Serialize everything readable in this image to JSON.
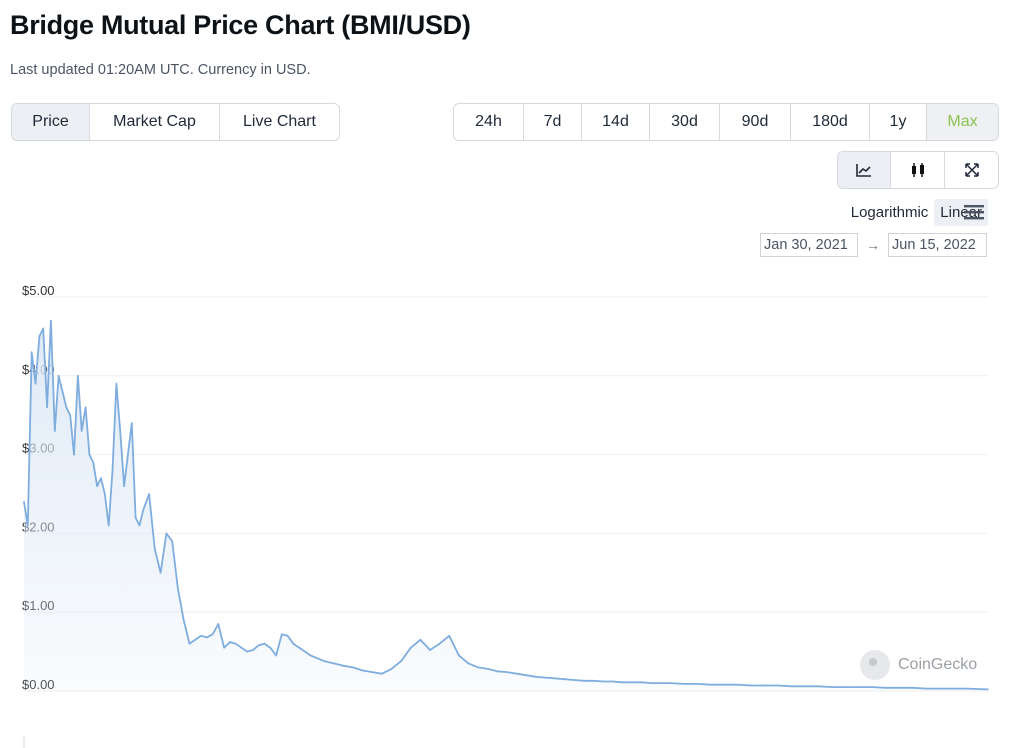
{
  "header": {
    "title": "Bridge Mutual Price Chart (BMI/USD)",
    "subtitle": "Last updated 01:20AM UTC. Currency in USD."
  },
  "view_tabs": [
    {
      "label": "Price",
      "active": true
    },
    {
      "label": "Market Cap",
      "active": false
    },
    {
      "label": "Live Chart",
      "active": false
    }
  ],
  "ranges": [
    {
      "label": "24h",
      "active": false
    },
    {
      "label": "7d",
      "active": false
    },
    {
      "label": "14d",
      "active": false
    },
    {
      "label": "30d",
      "active": false
    },
    {
      "label": "90d",
      "active": false
    },
    {
      "label": "180d",
      "active": false
    },
    {
      "label": "1y",
      "active": false
    },
    {
      "label": "Max",
      "active": true
    }
  ],
  "tools": [
    {
      "icon": "line-chart-icon",
      "active": true
    },
    {
      "icon": "candlestick-icon",
      "active": false
    },
    {
      "icon": "fullscreen-icon",
      "active": false
    }
  ],
  "scale": {
    "logarithmic": "Logarithmic",
    "linear": "Linear",
    "selected": "Linear"
  },
  "date_range": {
    "from": "Jan 30, 2021",
    "arrow": "→",
    "to": "Jun 15, 2022"
  },
  "watermark": {
    "text": "CoinGecko"
  },
  "colors": {
    "line": "#7fadde",
    "fill": "#dce8f6",
    "active_range": "#8cc351",
    "grid": "#eef0f2"
  },
  "chart_data": {
    "type": "area",
    "title": "Bridge Mutual Price Chart (BMI/USD)",
    "y_ticks": [
      "$0.00",
      "$1.00",
      "$2.00",
      "$3.00",
      "$4.00",
      "$5.00"
    ],
    "ylim": [
      0,
      5
    ],
    "xlim": [
      "2021-01-30",
      "2022-06-15"
    ],
    "grid": true,
    "x": [
      "2021-01-30",
      "2021-02-01",
      "2021-02-03",
      "2021-02-05",
      "2021-02-07",
      "2021-02-09",
      "2021-02-11",
      "2021-02-13",
      "2021-02-15",
      "2021-02-17",
      "2021-02-19",
      "2021-02-21",
      "2021-02-23",
      "2021-02-25",
      "2021-02-27",
      "2021-03-01",
      "2021-03-03",
      "2021-03-05",
      "2021-03-07",
      "2021-03-09",
      "2021-03-11",
      "2021-03-13",
      "2021-03-15",
      "2021-03-17",
      "2021-03-19",
      "2021-03-21",
      "2021-03-23",
      "2021-03-25",
      "2021-03-27",
      "2021-03-29",
      "2021-03-31",
      "2021-04-02",
      "2021-04-05",
      "2021-04-08",
      "2021-04-11",
      "2021-04-14",
      "2021-04-17",
      "2021-04-20",
      "2021-04-23",
      "2021-04-26",
      "2021-04-29",
      "2021-05-02",
      "2021-05-05",
      "2021-05-08",
      "2021-05-11",
      "2021-05-14",
      "2021-05-17",
      "2021-05-20",
      "2021-05-23",
      "2021-05-26",
      "2021-05-29",
      "2021-06-01",
      "2021-06-04",
      "2021-06-07",
      "2021-06-10",
      "2021-06-13",
      "2021-06-16",
      "2021-06-19",
      "2021-06-22",
      "2021-06-25",
      "2021-06-28",
      "2021-07-01",
      "2021-07-05",
      "2021-07-10",
      "2021-07-15",
      "2021-07-20",
      "2021-07-25",
      "2021-07-30",
      "2021-08-04",
      "2021-08-09",
      "2021-08-14",
      "2021-08-19",
      "2021-08-24",
      "2021-08-29",
      "2021-09-03",
      "2021-09-08",
      "2021-09-13",
      "2021-09-18",
      "2021-09-23",
      "2021-09-28",
      "2021-10-03",
      "2021-10-08",
      "2021-10-13",
      "2021-10-18",
      "2021-10-23",
      "2021-10-28",
      "2021-11-02",
      "2021-11-07",
      "2021-11-12",
      "2021-11-17",
      "2021-11-22",
      "2021-11-27",
      "2021-12-02",
      "2021-12-07",
      "2021-12-12",
      "2021-12-17",
      "2021-12-22",
      "2021-12-27",
      "2022-01-01",
      "2022-01-08",
      "2022-01-15",
      "2022-01-22",
      "2022-01-29",
      "2022-02-05",
      "2022-02-12",
      "2022-02-19",
      "2022-02-26",
      "2022-03-05",
      "2022-03-12",
      "2022-03-19",
      "2022-03-26",
      "2022-04-02",
      "2022-04-09",
      "2022-04-16",
      "2022-04-23",
      "2022-04-30",
      "2022-05-07",
      "2022-05-14",
      "2022-05-21",
      "2022-05-28",
      "2022-06-04",
      "2022-06-15"
    ],
    "values": [
      2.4,
      2.1,
      4.3,
      3.9,
      4.5,
      4.6,
      3.6,
      4.7,
      3.3,
      4.0,
      3.8,
      3.6,
      3.5,
      3.0,
      4.0,
      3.3,
      3.6,
      3.0,
      2.9,
      2.6,
      2.7,
      2.5,
      2.1,
      2.8,
      3.9,
      3.3,
      2.6,
      3.0,
      3.4,
      2.2,
      2.1,
      2.3,
      2.5,
      1.8,
      1.5,
      2.0,
      1.9,
      1.3,
      0.9,
      0.6,
      0.65,
      0.7,
      0.68,
      0.72,
      0.85,
      0.55,
      0.62,
      0.6,
      0.55,
      0.5,
      0.52,
      0.58,
      0.6,
      0.55,
      0.45,
      0.72,
      0.7,
      0.6,
      0.55,
      0.5,
      0.45,
      0.42,
      0.38,
      0.35,
      0.32,
      0.3,
      0.26,
      0.24,
      0.22,
      0.28,
      0.38,
      0.55,
      0.65,
      0.52,
      0.6,
      0.7,
      0.45,
      0.35,
      0.3,
      0.28,
      0.25,
      0.24,
      0.22,
      0.2,
      0.18,
      0.17,
      0.16,
      0.15,
      0.14,
      0.13,
      0.13,
      0.12,
      0.12,
      0.11,
      0.11,
      0.11,
      0.1,
      0.1,
      0.1,
      0.09,
      0.09,
      0.08,
      0.08,
      0.08,
      0.07,
      0.07,
      0.07,
      0.06,
      0.06,
      0.06,
      0.05,
      0.05,
      0.05,
      0.05,
      0.04,
      0.04,
      0.04,
      0.03,
      0.03,
      0.03,
      0.03,
      0.02
    ]
  }
}
